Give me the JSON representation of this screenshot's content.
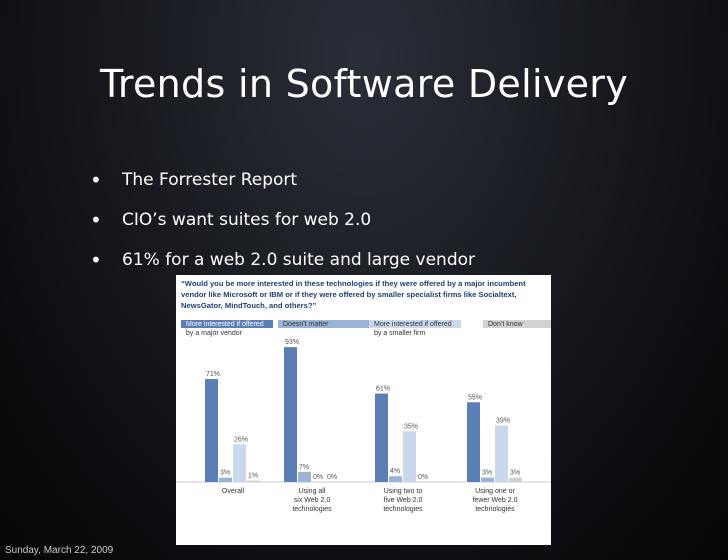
{
  "slide": {
    "title": "Trends in Software Delivery",
    "bullets": [
      "The Forrester Report",
      "CIO’s want suites for web 2.0",
      "61% for a web 2.0 suite and large vendor"
    ],
    "footer_date": "Sunday, March 22, 2009"
  },
  "chart_data": {
    "type": "bar",
    "title": "“Would you be more interested in these technologies if they were offered by a major incumbent vendor like Microsoft or IBM or if they were offered by smaller specialist firms like Socialtext, NewsGator, MindTouch, and others?”",
    "title_lines": [
      "“Would you be more interested in these technologies if they were offered by a major incumbent",
      "vendor like Microsoft or IBM or if they were offered by smaller specialist firms like Socialtext,",
      "NewsGator, MindTouch, and others?”"
    ],
    "categories": [
      "Overall",
      "Using all six Web 2.0 technologies",
      "Using two to five Web 2.0 technologies",
      "Using one or fewer Web 2.0 technologies"
    ],
    "category_lines": [
      [
        "Overall"
      ],
      [
        "Using all",
        "six Web 2.0",
        "technologies"
      ],
      [
        "Using two to",
        "five Web 2.0",
        "technologies"
      ],
      [
        "Using one or",
        "fewer Web 2.0",
        "technologies"
      ]
    ],
    "series": [
      {
        "name": "More interested if offered by a major vendor",
        "legend_lines": [
          "More interested if offered",
          "by a major vendor"
        ],
        "color": "#5b7fb5",
        "values": [
          71,
          93,
          61,
          55
        ]
      },
      {
        "name": "Doesn’t matter",
        "legend_lines": [
          "Doesn’t matter"
        ],
        "color": "#9ab3d6",
        "values": [
          3,
          7,
          4,
          3
        ]
      },
      {
        "name": "More interested if offered by a smaller firm",
        "legend_lines": [
          "More interested if offered",
          "by a smaller firm"
        ],
        "color": "#c9d8ec",
        "values": [
          26,
          0,
          35,
          39
        ]
      },
      {
        "name": "Don’t know",
        "legend_lines": [
          "Don’t know"
        ],
        "color": "#d2d2d2",
        "values": [
          1,
          0,
          0,
          3
        ]
      }
    ],
    "value_labels": [
      [
        "71%",
        "3%",
        "26%",
        "1%"
      ],
      [
        "93%",
        "7%",
        "0%",
        "0%"
      ],
      [
        "61%",
        "4%",
        "35%",
        "0%"
      ],
      [
        "55%",
        "3%",
        "39%",
        "3%"
      ]
    ],
    "ylim": [
      0,
      100
    ],
    "grid": false,
    "legend_position": "top"
  }
}
